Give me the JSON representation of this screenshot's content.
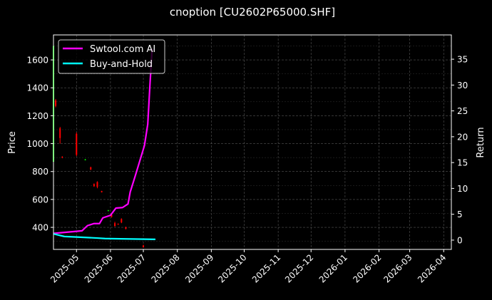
{
  "chart_data": {
    "type": "line",
    "title": "cnoption [CU2602P65000.SHF]",
    "ylabel": "Price",
    "y2label": "Return",
    "xlim": [
      "2025-04-10",
      "2026-04-08"
    ],
    "ylim": [
      242,
      1779
    ],
    "y2lim": [
      -1.8,
      39.7
    ],
    "grid": true,
    "legend_placement": "upper-left",
    "x_ticks": [
      "2025-05",
      "2025-06",
      "2025-07",
      "2025-08",
      "2025-09",
      "2025-10",
      "2025-11",
      "2025-12",
      "2026-01",
      "2026-02",
      "2026-03",
      "2026-04"
    ],
    "y_ticks": [
      400,
      600,
      800,
      1000,
      1200,
      1400,
      1600
    ],
    "y2_ticks": [
      0,
      5,
      10,
      15,
      20,
      25,
      30,
      35
    ],
    "series": [
      {
        "name": "Swtool.com AI",
        "axis": "right",
        "color": "#ff00ff",
        "x": [
          "2025-04-10",
          "2025-05-01",
          "2025-05-06",
          "2025-05-11",
          "2025-05-17",
          "2025-05-22",
          "2025-05-25",
          "2025-06-01",
          "2025-06-06",
          "2025-06-12",
          "2025-06-17",
          "2025-06-19",
          "2025-06-24",
          "2025-07-02",
          "2025-07-05",
          "2025-07-07",
          "2025-07-09"
        ],
        "values": [
          1.3,
          1.7,
          1.8,
          2.8,
          3.2,
          3.2,
          4.3,
          4.8,
          6.2,
          6.3,
          7.0,
          9.3,
          12.7,
          18.3,
          22.4,
          30.0,
          37.0
        ]
      },
      {
        "name": "Buy-and-Hold",
        "axis": "right",
        "color": "#00ffff",
        "x": [
          "2025-04-10",
          "2025-04-14",
          "2025-04-20",
          "2025-05-01",
          "2025-05-20",
          "2025-05-27",
          "2025-06-10",
          "2025-07-12"
        ],
        "values": [
          1.2,
          1.0,
          0.7,
          0.6,
          0.4,
          0.3,
          0.25,
          0.15
        ]
      }
    ],
    "candles": [
      {
        "date": "2025-04-10",
        "open": 870,
        "high": 1710,
        "low": 860,
        "close": 1700
      },
      {
        "date": "2025-04-12",
        "open": 1310,
        "high": 1320,
        "low": 1260,
        "close": 1270
      },
      {
        "date": "2025-04-16",
        "open": 1110,
        "high": 1120,
        "low": 1000,
        "close": 1040
      },
      {
        "date": "2025-04-18",
        "open": 905,
        "high": 910,
        "low": 895,
        "close": 900
      },
      {
        "date": "2025-05-01",
        "open": 1070,
        "high": 1080,
        "low": 910,
        "close": 920
      },
      {
        "date": "2025-05-09",
        "open": 885,
        "high": 890,
        "low": 880,
        "close": 887
      },
      {
        "date": "2025-05-14",
        "open": 830,
        "high": 835,
        "low": 810,
        "close": 815
      },
      {
        "date": "2025-05-17",
        "open": 710,
        "high": 715,
        "low": 690,
        "close": 695
      },
      {
        "date": "2025-05-20",
        "open": 725,
        "high": 730,
        "low": 680,
        "close": 690
      },
      {
        "date": "2025-05-24",
        "open": 660,
        "high": 662,
        "low": 650,
        "close": 652
      },
      {
        "date": "2025-05-30",
        "open": 520,
        "high": 525,
        "low": 515,
        "close": 522
      },
      {
        "date": "2025-06-02",
        "open": 490,
        "high": 500,
        "low": 470,
        "close": 475
      },
      {
        "date": "2025-06-05",
        "open": 430,
        "high": 440,
        "low": 405,
        "close": 410
      },
      {
        "date": "2025-06-08",
        "open": 425,
        "high": 428,
        "low": 418,
        "close": 420
      },
      {
        "date": "2025-06-11",
        "open": 460,
        "high": 465,
        "low": 430,
        "close": 435
      },
      {
        "date": "2025-06-15",
        "open": 400,
        "high": 405,
        "low": 385,
        "close": 390
      },
      {
        "date": "2025-07-01",
        "open": 270,
        "high": 275,
        "low": 255,
        "close": 258
      }
    ]
  }
}
